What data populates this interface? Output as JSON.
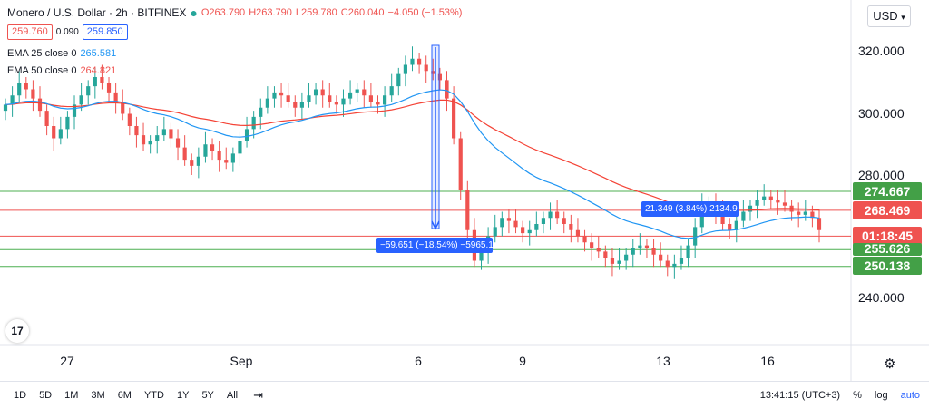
{
  "header": {
    "symbol": "Monero / U.S. Dollar · 2h · BITFINEX",
    "open": "O263.790",
    "high": "H263.790",
    "low": "L259.780",
    "close": "C260.040",
    "change": "−4.050 (−1.53%)",
    "bid": "259.760",
    "spread": "0.090",
    "ask": "259.850",
    "ema25_label": "EMA 25 close 0",
    "ema25_value": "265.581",
    "ema50_label": "EMA 50 close 0",
    "ema50_value": "264.821"
  },
  "currency": "USD",
  "tags": {
    "t1": "274.667",
    "t2": "268.469",
    "t3": "01:18:45",
    "t4": "255.626",
    "t5": "250.138"
  },
  "measure": {
    "down": "−59.651 (−18.54%) −5965.1",
    "up": "21.349 (3.84%) 2134.9"
  },
  "toolbar": {
    "timeframes": [
      "1D",
      "5D",
      "1M",
      "3M",
      "6M",
      "YTD",
      "1Y",
      "5Y",
      "All"
    ],
    "time": "13:41:15 (UTC+3)",
    "percent": "%",
    "log": "log",
    "auto": "auto"
  },
  "colors": {
    "up": "#26a69a",
    "down": "#ef5350",
    "ema25": "#2196f3",
    "ema50": "#f44336",
    "green_line": "#4caf50",
    "red_line": "#ef5350",
    "measure": "#2962ff"
  },
  "chart_data": {
    "type": "candlestick",
    "y_ticks": [
      "320.000",
      "300.000",
      "280.000",
      "240.000"
    ],
    "ylim": [
      226.5,
      327.5
    ],
    "x_ticks": [
      "27",
      "Sep",
      "6",
      "9",
      "13",
      "16"
    ],
    "horizontal_lines": [
      {
        "price": 274.667,
        "color": "green"
      },
      {
        "price": 268.469,
        "color": "red"
      },
      {
        "price": 260.04,
        "color": "red"
      },
      {
        "price": 255.626,
        "color": "green"
      },
      {
        "price": 250.138,
        "color": "green"
      }
    ],
    "close_series": [
      303,
      306,
      310,
      308,
      305,
      301,
      296,
      292,
      295,
      299,
      303,
      306,
      309,
      312,
      310,
      307,
      304,
      300,
      296,
      293,
      290,
      291,
      293,
      295,
      292,
      289,
      285,
      283,
      286,
      290,
      288,
      285,
      284,
      287,
      291,
      295,
      299,
      302,
      305,
      307,
      306,
      304,
      302,
      304,
      306,
      308,
      306,
      304,
      303,
      305,
      307,
      308,
      306,
      304,
      303,
      306,
      309,
      313,
      316,
      318,
      316,
      314,
      313,
      311,
      305,
      292,
      275,
      262,
      252,
      255,
      260,
      263,
      266,
      265,
      263,
      261,
      262,
      264,
      266,
      268,
      266,
      264,
      262,
      260,
      258,
      256,
      255,
      253,
      251,
      252,
      254,
      256,
      257,
      256,
      254,
      252,
      250,
      251,
      253,
      257,
      263,
      270,
      271,
      268,
      264,
      262,
      265,
      268,
      270,
      272,
      273,
      272,
      271,
      270,
      268,
      267,
      268,
      266,
      262
    ]
  }
}
